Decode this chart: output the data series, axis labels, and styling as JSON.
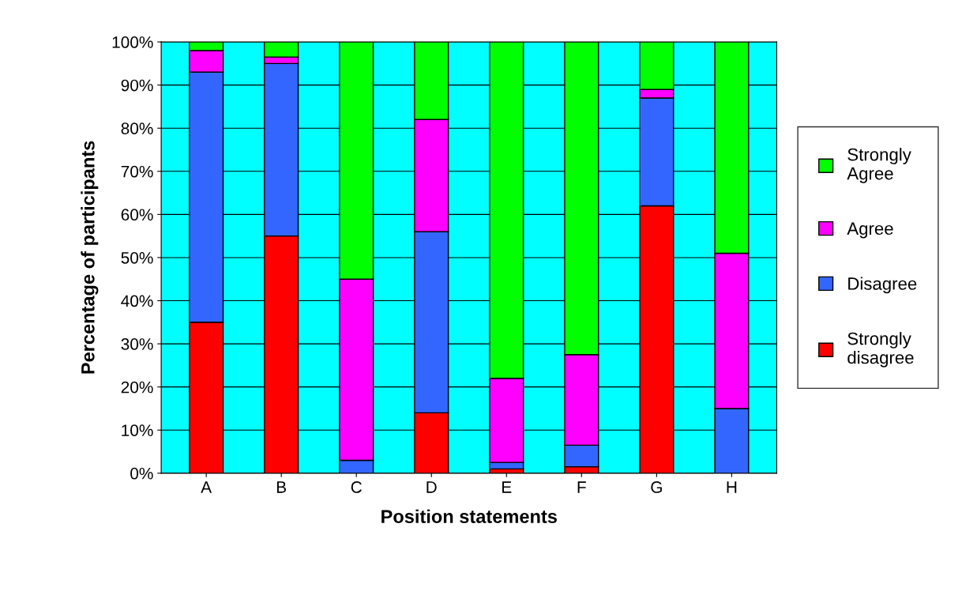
{
  "chart_data": {
    "type": "bar",
    "stacked": true,
    "xlabel": "Position statements",
    "ylabel": "Percentage of participants",
    "categories": [
      "A",
      "B",
      "C",
      "D",
      "E",
      "F",
      "G",
      "H"
    ],
    "series": [
      {
        "name": "Strongly disagree",
        "color": "#ff0000",
        "values": [
          35,
          55,
          0,
          14,
          1,
          1.5,
          62,
          0
        ]
      },
      {
        "name": "Disagree",
        "color": "#3366ff",
        "values": [
          58,
          40,
          3,
          42,
          1.5,
          5,
          25,
          15
        ]
      },
      {
        "name": "Agree",
        "color": "#ff00ff",
        "values": [
          5,
          1.5,
          42,
          26,
          19.5,
          21,
          2,
          36
        ]
      },
      {
        "name": "Strongly Agree",
        "color": "#00ff00",
        "values": [
          2,
          3.5,
          55,
          18,
          78,
          72.5,
          11,
          49
        ]
      }
    ],
    "ylim": [
      0,
      100
    ],
    "yticks": [
      {
        "value": 0,
        "label": "0%"
      },
      {
        "value": 10,
        "label": "10%"
      },
      {
        "value": 20,
        "label": "20%"
      },
      {
        "value": 30,
        "label": "30%"
      },
      {
        "value": 40,
        "label": "40%"
      },
      {
        "value": 50,
        "label": "50%"
      },
      {
        "value": 60,
        "label": "60%"
      },
      {
        "value": 70,
        "label": "70%"
      },
      {
        "value": 80,
        "label": "80%"
      },
      {
        "value": 90,
        "label": "90%"
      },
      {
        "value": 100,
        "label": "100%"
      }
    ],
    "grid": "y",
    "legend": "right"
  }
}
